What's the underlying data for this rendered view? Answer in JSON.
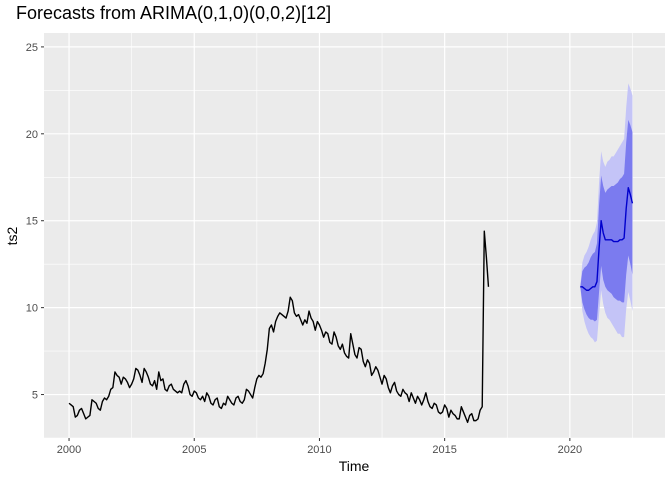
{
  "chart_data": {
    "type": "line",
    "title": "Forecasts from ARIMA(0,1,0)(0,0,2)[12]",
    "xlabel": "Time",
    "ylabel": "ts2",
    "xlim": [
      1999.0,
      2023.8
    ],
    "ylim": [
      2.5,
      25.8
    ],
    "xticks": [
      2000,
      2005,
      2010,
      2015,
      2020
    ],
    "yticks": [
      5,
      10,
      15,
      20,
      25
    ],
    "grid": true,
    "colors": {
      "panel": "#EBEBEB",
      "grid_major": "#FFFFFF",
      "series": "#000000",
      "forecast": "#0000CC",
      "band80": "#7B7BEF",
      "band95": "#C4C4F7",
      "axis_text": "#4D4D4D"
    },
    "series": [
      {
        "role": "observed",
        "start": 2000.0,
        "frequency": 12,
        "values": [
          4.5,
          4.4,
          4.3,
          3.7,
          3.8,
          4.1,
          4.2,
          3.9,
          3.6,
          3.7,
          3.8,
          4.7,
          4.6,
          4.5,
          4.2,
          4.1,
          4.6,
          4.8,
          4.7,
          4.9,
          5.3,
          5.4,
          6.3,
          6.1,
          6.0,
          5.6,
          6.0,
          5.9,
          5.7,
          5.4,
          5.6,
          5.9,
          6.5,
          6.4,
          6.1,
          5.7,
          6.5,
          6.3,
          6.0,
          5.6,
          5.5,
          5.8,
          5.3,
          6.3,
          5.8,
          5.9,
          5.3,
          5.2,
          5.5,
          5.6,
          5.3,
          5.2,
          5.1,
          5.2,
          5.1,
          5.6,
          5.8,
          5.5,
          5.0,
          4.9,
          5.2,
          5.1,
          4.8,
          4.7,
          4.9,
          4.6,
          5.1,
          4.9,
          4.5,
          4.4,
          4.7,
          4.8,
          4.3,
          4.2,
          4.5,
          4.4,
          4.9,
          4.7,
          4.5,
          4.4,
          4.8,
          4.9,
          4.6,
          4.5,
          4.7,
          5.3,
          5.2,
          5.0,
          4.8,
          5.4,
          5.9,
          6.1,
          6.0,
          6.2,
          6.8,
          7.6,
          8.8,
          9.0,
          8.6,
          9.2,
          9.5,
          9.7,
          9.6,
          9.5,
          9.4,
          9.8,
          10.6,
          10.4,
          9.7,
          9.5,
          9.6,
          9.3,
          9.0,
          9.3,
          9.1,
          9.8,
          9.4,
          9.2,
          8.7,
          9.2,
          9.0,
          8.7,
          8.3,
          8.6,
          8.5,
          8.0,
          7.9,
          8.6,
          8.3,
          7.8,
          7.6,
          7.9,
          7.4,
          7.2,
          7.1,
          8.5,
          7.9,
          7.3,
          7.1,
          7.7,
          7.6,
          6.9,
          6.6,
          7.0,
          6.8,
          6.1,
          6.3,
          6.6,
          6.4,
          6.0,
          5.6,
          6.1,
          5.9,
          5.4,
          5.1,
          5.5,
          5.7,
          5.2,
          5.0,
          4.9,
          5.3,
          5.1,
          5.0,
          4.6,
          5.1,
          4.8,
          4.5,
          4.9,
          4.7,
          4.4,
          4.7,
          5.1,
          4.6,
          4.3,
          4.2,
          4.5,
          4.4,
          4.0,
          3.9,
          4.0,
          4.4,
          4.2,
          3.7,
          4.1,
          3.9,
          3.8,
          3.6,
          3.6,
          4.3,
          4.0,
          3.7,
          3.4,
          3.8,
          3.9,
          3.5,
          3.5,
          3.6,
          4.1,
          4.3,
          14.4,
          12.9,
          11.2
        ]
      },
      {
        "role": "forecast_mean",
        "start": 2020.4167,
        "frequency": 12,
        "values": [
          11.2,
          11.2,
          11.1,
          11.0,
          11.0,
          11.1,
          11.2,
          11.2,
          11.5,
          13.4,
          15.0,
          14.3,
          13.9,
          13.9,
          13.9,
          13.9,
          13.8,
          13.8,
          13.8,
          13.9,
          13.9,
          14.0,
          15.7,
          16.9,
          16.5,
          16.0
        ],
        "lo80": [
          11.2,
          10.3,
          9.9,
          9.6,
          9.4,
          9.3,
          9.3,
          9.2,
          9.3,
          10.9,
          12.4,
          11.6,
          11.2,
          11.0,
          10.9,
          10.8,
          10.6,
          10.5,
          10.4,
          10.4,
          10.3,
          10.3,
          11.9,
          13.0,
          12.5,
          11.9
        ],
        "hi80": [
          11.2,
          12.1,
          12.3,
          12.4,
          12.6,
          12.9,
          13.1,
          13.2,
          13.7,
          15.9,
          17.6,
          17.0,
          16.6,
          16.8,
          16.9,
          17.0,
          17.0,
          17.1,
          17.2,
          17.4,
          17.5,
          17.7,
          19.5,
          20.8,
          20.5,
          20.1
        ],
        "lo95": [
          11.2,
          9.8,
          9.2,
          8.8,
          8.5,
          8.3,
          8.2,
          8.0,
          8.1,
          9.6,
          11.0,
          10.2,
          9.7,
          9.4,
          9.3,
          9.1,
          8.9,
          8.7,
          8.5,
          8.5,
          8.3,
          8.3,
          9.9,
          10.9,
          10.4,
          9.8
        ],
        "hi95": [
          11.2,
          12.6,
          13.0,
          13.2,
          13.5,
          13.9,
          14.2,
          14.4,
          14.9,
          17.2,
          19.0,
          18.4,
          18.1,
          18.4,
          18.5,
          18.7,
          18.7,
          18.9,
          19.1,
          19.3,
          19.5,
          19.7,
          21.5,
          22.9,
          22.6,
          22.2
        ]
      }
    ]
  }
}
